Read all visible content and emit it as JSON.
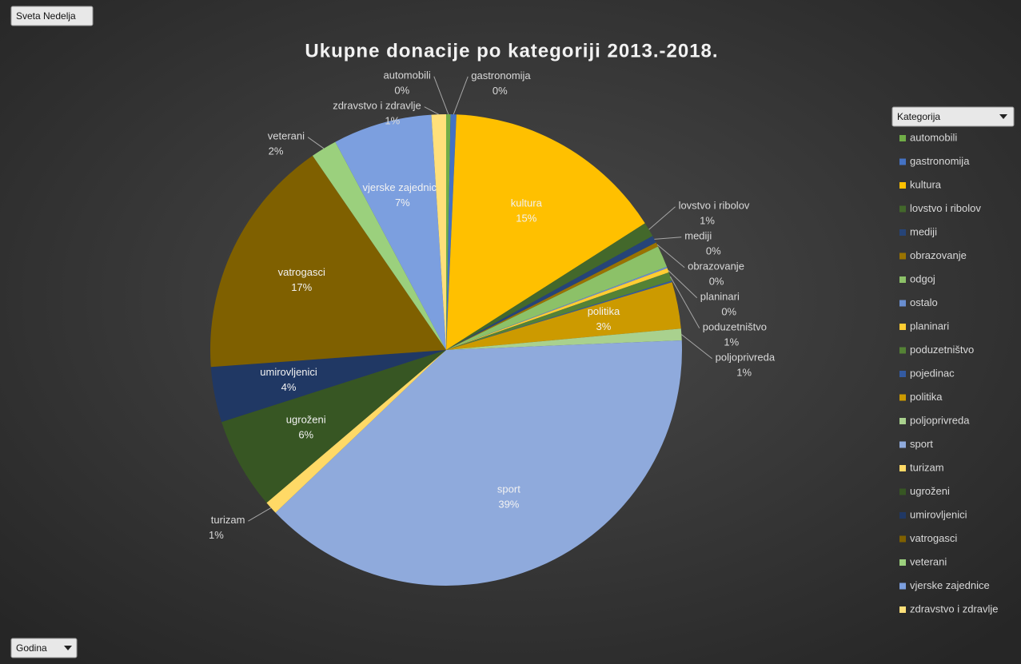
{
  "chart_data": {
    "type": "pie",
    "title": "Ukupne donacije po kategoriji 2013.-2018.",
    "report_filter": "Sveta Nedelja",
    "axis_filter": "Godina",
    "legend_title": "Kategorija",
    "categories": [
      "automobili",
      "gastronomija",
      "kultura",
      "lovstvo i ribolov",
      "mediji",
      "obrazovanje",
      "odgoj",
      "ostalo",
      "planinari",
      "poduzetništvo",
      "pojedinac",
      "politika",
      "poljoprivreda",
      "sport",
      "turizam",
      "ugroženi",
      "umirovljenici",
      "vatrogasci",
      "veterani",
      "vjerske zajednice",
      "zdravstvo i zdravlje"
    ],
    "values": [
      0.3,
      0.4,
      15.3,
      1.0,
      0.5,
      0.3,
      1.5,
      0.1,
      0.3,
      0.6,
      0.1,
      3.2,
      0.8,
      38.6,
      0.9,
      6.3,
      3.8,
      16.6,
      1.8,
      6.8,
      1.0
    ],
    "value_labels": [
      "0%",
      "0%",
      "15%",
      "1%",
      "0%",
      "0%",
      null,
      null,
      "0%",
      "1%",
      null,
      "3%",
      "1%",
      "39%",
      "1%",
      "6%",
      "4%",
      "17%",
      "2%",
      "7%",
      "1%"
    ],
    "colors": [
      "#70ad47",
      "#4472c4",
      "#ffc000",
      "#43682b",
      "#264478",
      "#997300",
      "#8cc168",
      "#698ed0",
      "#ffcd33",
      "#548235",
      "#335aa1",
      "#cc9a00",
      "#a9d18e",
      "#8faadc",
      "#ffd966",
      "#375623",
      "#203864",
      "#7f6000",
      "#9bd07d",
      "#7c9fdf",
      "#ffe07a"
    ]
  }
}
